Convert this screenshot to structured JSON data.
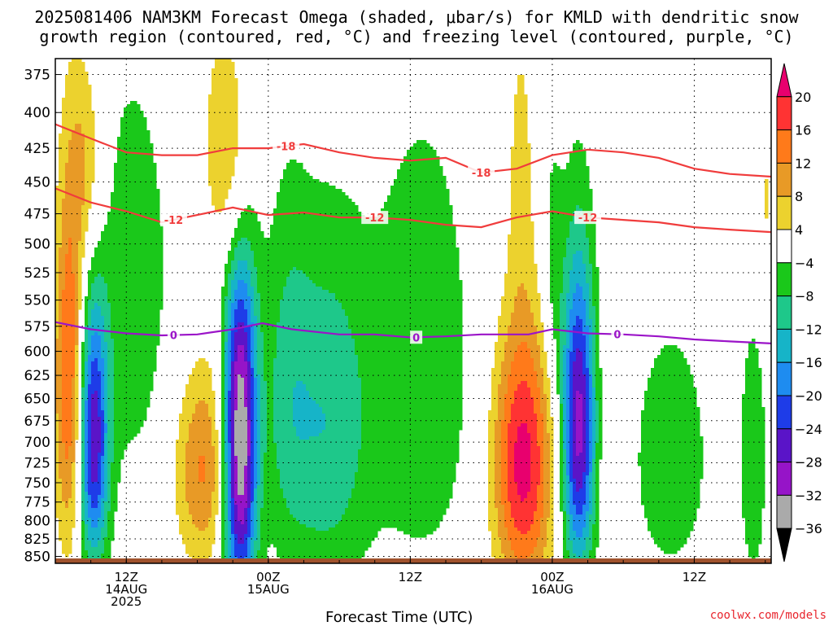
{
  "title_line1": "2025081406 NAM3KM Forecast Omega (shaded, μbar/s) for KMLD with dendritic snow",
  "title_line2": "growth region (contoured, red, °C) and freezing level (contoured, purple, °C)",
  "credit": "coolwx.com/models",
  "chart_data": {
    "type": "heatmap",
    "title": "2025081406 NAM3KM Forecast Omega (shaded, μbar/s) for KMLD with dendritic snow growth region (contoured, red, °C) and freezing level (contoured, purple, °C)",
    "xlabel": "Forecast Time (UTC)",
    "x_ticks": [
      {
        "hour": 6,
        "lines": [
          "12Z",
          "14AUG",
          "2025"
        ]
      },
      {
        "hour": 18,
        "lines": [
          "00Z",
          "15AUG"
        ]
      },
      {
        "hour": 30,
        "lines": [
          "12Z"
        ]
      },
      {
        "hour": 42,
        "lines": [
          "00Z",
          "16AUG"
        ]
      },
      {
        "hour": 54,
        "lines": [
          "12Z"
        ]
      }
    ],
    "xlim_hours": [
      0,
      60.5
    ],
    "y_levels_mb": [
      375,
      400,
      425,
      450,
      475,
      500,
      525,
      550,
      575,
      600,
      625,
      650,
      675,
      700,
      725,
      750,
      775,
      800,
      825,
      850
    ],
    "y_scale": "log-pressure",
    "ylim_mb": [
      365,
      860
    ],
    "grid": "dotted",
    "colorbar": {
      "labels": [
        "20",
        "16",
        "12",
        "8",
        "4",
        "−4",
        "−8",
        "−12",
        "−16",
        "−20",
        "−24",
        "−28",
        "−32",
        "−36"
      ],
      "colors": [
        "#e8006e",
        "#ff3333",
        "#ff7a1a",
        "#e89a26",
        "#ecd22e",
        "#ffffff",
        "#1ac81a",
        "#1ec88a",
        "#16b4c8",
        "#1e8cf0",
        "#1e3ce8",
        "#5a14c8",
        "#9614c8",
        "#aaaaaa",
        "#000000"
      ]
    },
    "omega_blobs": [
      {
        "h": 1.2,
        "p": 625,
        "sx": 0.9,
        "sy": 140,
        "peak": 18
      },
      {
        "h": 2.7,
        "p": 440,
        "sx": 1.0,
        "sy": 60,
        "peak": 9
      },
      {
        "h": 3.2,
        "p": 700,
        "sx": 0.9,
        "sy": 110,
        "peak": -26
      },
      {
        "h": 6.5,
        "p": 545,
        "sx": 3.0,
        "sy": 170,
        "peak": -6
      },
      {
        "h": 12.5,
        "p": 730,
        "sx": 1.8,
        "sy": 90,
        "peak": 13
      },
      {
        "h": 15.6,
        "p": 700,
        "sx": 1.0,
        "sy": 150,
        "peak": -38
      },
      {
        "h": 15.2,
        "p": 440,
        "sx": 1.0,
        "sy": 70,
        "peak": 11
      },
      {
        "h": 13.5,
        "p": 420,
        "sx": 0.8,
        "sy": 55,
        "peak": 5
      },
      {
        "h": 23,
        "p": 680,
        "sx": 2.5,
        "sy": 150,
        "peak": -11
      },
      {
        "h": 19.5,
        "p": 640,
        "sx": 1.5,
        "sy": 150,
        "peak": -7
      },
      {
        "h": 31,
        "p": 620,
        "sx": 3.5,
        "sy": 190,
        "peak": -7
      },
      {
        "h": 39.5,
        "p": 725,
        "sx": 1.8,
        "sy": 120,
        "peak": 22
      },
      {
        "h": 39.3,
        "p": 430,
        "sx": 0.8,
        "sy": 80,
        "peak": 5
      },
      {
        "h": 44.2,
        "p": 680,
        "sx": 1.0,
        "sy": 130,
        "peak": -30
      },
      {
        "h": 42,
        "p": 520,
        "sx": 0.7,
        "sy": 90,
        "peak": -6
      },
      {
        "h": 47,
        "p": 700,
        "sx": 0.6,
        "sy": 90,
        "peak": 5
      },
      {
        "h": 52,
        "p": 720,
        "sx": 2.5,
        "sy": 120,
        "peak": -7
      },
      {
        "h": 59,
        "p": 720,
        "sx": 1.0,
        "sy": 150,
        "peak": -6
      },
      {
        "h": 60,
        "p": 470,
        "sx": 0.6,
        "sy": 60,
        "peak": 5
      }
    ],
    "contours": [
      {
        "label": "-18",
        "color": "#f03c3c",
        "points": [
          [
            0,
            408
          ],
          [
            3,
            418
          ],
          [
            6,
            428
          ],
          [
            9,
            430
          ],
          [
            12,
            430
          ],
          [
            15,
            425
          ],
          [
            18,
            425
          ],
          [
            21,
            422
          ],
          [
            24,
            428
          ],
          [
            27,
            432
          ],
          [
            30,
            434
          ],
          [
            33,
            432
          ],
          [
            36,
            443
          ],
          [
            39,
            440
          ],
          [
            42,
            430
          ],
          [
            45,
            426
          ],
          [
            48,
            428
          ],
          [
            51,
            432
          ],
          [
            54,
            440
          ],
          [
            57,
            444
          ],
          [
            60.5,
            446
          ]
        ],
        "label_hours": [
          19.5,
          36
        ]
      },
      {
        "label": "-12",
        "color": "#f03c3c",
        "points": [
          [
            0,
            455
          ],
          [
            3,
            466
          ],
          [
            6,
            473
          ],
          [
            9,
            482
          ],
          [
            12,
            476
          ],
          [
            15,
            470
          ],
          [
            18,
            476
          ],
          [
            21,
            474
          ],
          [
            24,
            478
          ],
          [
            27,
            478
          ],
          [
            30,
            480
          ],
          [
            33,
            484
          ],
          [
            36,
            486
          ],
          [
            39,
            478
          ],
          [
            42,
            473
          ],
          [
            45,
            478
          ],
          [
            48,
            480
          ],
          [
            51,
            482
          ],
          [
            54,
            486
          ],
          [
            57,
            488
          ],
          [
            60.5,
            490
          ]
        ],
        "label_hours": [
          10,
          27,
          45
        ]
      },
      {
        "label": "0",
        "color": "#9b14c8",
        "points": [
          [
            0,
            571
          ],
          [
            3,
            578
          ],
          [
            6,
            582
          ],
          [
            9,
            584
          ],
          [
            12,
            583
          ],
          [
            15,
            578
          ],
          [
            17.5,
            572
          ],
          [
            20,
            578
          ],
          [
            24,
            583
          ],
          [
            27,
            583
          ],
          [
            30,
            586
          ],
          [
            33,
            585
          ],
          [
            36,
            583
          ],
          [
            40,
            583
          ],
          [
            42,
            578
          ],
          [
            45,
            582
          ],
          [
            48,
            583
          ],
          [
            51,
            585
          ],
          [
            54,
            588
          ],
          [
            57,
            590
          ],
          [
            60.5,
            592
          ]
        ],
        "label_hours": [
          10,
          30.5,
          47.5
        ]
      }
    ]
  }
}
